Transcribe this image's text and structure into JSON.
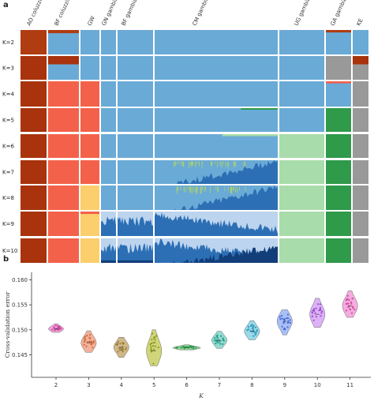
{
  "panels": {
    "a": "a",
    "b": "b"
  },
  "colors": {
    "k2_orange": "#b03c12",
    "ao_brown": "#a8330c",
    "sky_blue": "#6aaad6",
    "salmon": "#f4614a",
    "gray": "#999999",
    "dark_green": "#2f9a4a",
    "light_green": "#a8dcaa",
    "navy_blue": "#2c6fb5",
    "yellow": "#fccf6c",
    "pale_blue": "#bcd4ee",
    "deep_navy": "#123e7a",
    "mid_blue": "#4f86c8",
    "lime": "#aed36a"
  },
  "chart_data": [
    {
      "type": "stacked-bar",
      "panel": "a",
      "populations": [
        "AO coluzzii",
        "BF coluzzii",
        "GW",
        "GN gambiae",
        "BF gambiae",
        "CM gambiae",
        "UG gambiae",
        "GA gambiae",
        "KE"
      ],
      "rows": [
        "K=2",
        "K=3",
        "K=4",
        "K=5",
        "K=6",
        "K=7",
        "K=8",
        "K=9",
        "K=10"
      ]
    },
    {
      "type": "violin",
      "panel": "b",
      "xlabel": "K",
      "ylabel": "Cross-validation error",
      "categories": [
        2,
        3,
        4,
        5,
        6,
        7,
        8,
        9,
        10,
        11
      ],
      "means": [
        0.1502,
        0.1474,
        0.1465,
        0.1458,
        0.1464,
        0.1479,
        0.1497,
        0.1517,
        0.1531,
        0.1548
      ],
      "mins": [
        0.1495,
        0.1455,
        0.1445,
        0.1428,
        0.146,
        0.1463,
        0.148,
        0.149,
        0.1505,
        0.1525
      ],
      "maxs": [
        0.1512,
        0.1498,
        0.1485,
        0.15,
        0.147,
        0.1497,
        0.1518,
        0.154,
        0.1563,
        0.1578
      ],
      "violin_colors": [
        "#ec9ad4",
        "#f2a98e",
        "#ccb07c",
        "#ccd06a",
        "#8ad08e",
        "#86d6cc",
        "#8fd4e8",
        "#a0b8f6",
        "#d9a8f6",
        "#f4a4dc"
      ],
      "point_colors": [
        "#d04a9e",
        "#cc6a3c",
        "#9a7e3c",
        "#8a9a20",
        "#2e9a50",
        "#2a9a8a",
        "#2c9ab6",
        "#4a6ad0",
        "#9a52d0",
        "#d04a9e"
      ],
      "yticks": [
        0.145,
        0.15,
        0.155,
        0.16
      ],
      "ytick_labels": [
        "0.145",
        "0.150",
        "0.155",
        "0.160"
      ],
      "ylim": [
        0.1405,
        0.1615
      ],
      "grid": false
    }
  ]
}
